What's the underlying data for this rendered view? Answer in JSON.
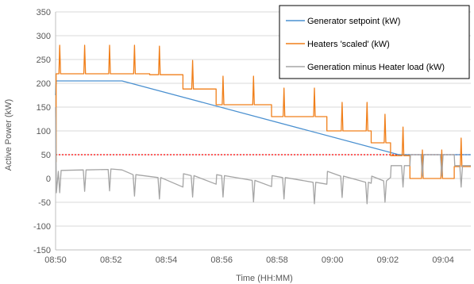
{
  "chart_data": {
    "type": "line",
    "xlabel": "Time (HH:MM)",
    "ylabel": "Active Power (kW)",
    "xlim": [
      0,
      15
    ],
    "ylim": [
      -150,
      350
    ],
    "x_ticks": [
      {
        "t": 0,
        "label": "08:50"
      },
      {
        "t": 2,
        "label": "08:52"
      },
      {
        "t": 4,
        "label": "08:54"
      },
      {
        "t": 6,
        "label": "08:56"
      },
      {
        "t": 8,
        "label": "08:58"
      },
      {
        "t": 10,
        "label": "09:00"
      },
      {
        "t": 12,
        "label": "09:02"
      },
      {
        "t": 14,
        "label": "09:04"
      }
    ],
    "y_ticks": [
      -150,
      -100,
      -50,
      0,
      50,
      100,
      150,
      200,
      250,
      300,
      350
    ],
    "grid": "horizontal",
    "legend": "top-right",
    "reference_line": {
      "y": 50,
      "color": "#ff0000",
      "style": "dotted"
    },
    "series": [
      {
        "name": "Generator setpoint (kW)",
        "color": "#4a90d0",
        "points": [
          [
            0,
            175
          ],
          [
            0.02,
            205
          ],
          [
            2.4,
            205
          ],
          [
            12.4,
            50
          ],
          [
            15,
            50
          ]
        ]
      },
      {
        "name": "Heaters 'scaled' (kW)",
        "color": "#f07f1a",
        "spike_height": 60,
        "levels": [
          {
            "t0": 0,
            "t1": 0.02,
            "y": 35
          },
          {
            "t0": 0.02,
            "t1": 3.4,
            "y": 220
          },
          {
            "t0": 3.4,
            "t1": 4.6,
            "y": 218
          },
          {
            "t0": 4.6,
            "t1": 5.8,
            "y": 188
          },
          {
            "t0": 5.8,
            "t1": 7.8,
            "y": 155
          },
          {
            "t0": 7.8,
            "t1": 9.8,
            "y": 130
          },
          {
            "t0": 9.8,
            "t1": 11.4,
            "y": 100
          },
          {
            "t0": 11.4,
            "t1": 12.1,
            "y": 75
          },
          {
            "t0": 12.1,
            "t1": 12.8,
            "y": 48
          },
          {
            "t0": 12.8,
            "t1": 14.4,
            "y": 0
          },
          {
            "t0": 14.4,
            "t1": 15,
            "y": 25
          }
        ],
        "spikes": [
          0.15,
          1.05,
          1.95,
          2.85,
          3.75,
          4.95,
          6.05,
          7.15,
          8.25,
          9.35,
          10.35,
          11.25,
          11.9,
          12.55,
          13.25,
          13.95,
          14.65
        ]
      },
      {
        "name": "Generation minus Heater load (kW)",
        "color": "#a5a5a5",
        "spike_depth": 45,
        "points": [
          [
            0,
            150
          ],
          [
            0.03,
            -30
          ],
          [
            0.1,
            15
          ],
          [
            0.15,
            -30
          ],
          [
            0.2,
            17
          ],
          [
            1.0,
            18
          ],
          [
            1.05,
            -27
          ],
          [
            1.1,
            18
          ],
          [
            1.9,
            19
          ],
          [
            1.95,
            -26
          ],
          [
            2.0,
            20
          ],
          [
            2.4,
            18
          ],
          [
            2.8,
            8
          ],
          [
            2.85,
            -37
          ],
          [
            2.9,
            8
          ],
          [
            3.7,
            2
          ],
          [
            3.75,
            -43
          ],
          [
            3.8,
            2
          ],
          [
            4.6,
            -18
          ],
          [
            4.62,
            10
          ],
          [
            4.9,
            6
          ],
          [
            4.95,
            -39
          ],
          [
            5.0,
            6
          ],
          [
            5.8,
            -12
          ],
          [
            5.82,
            8
          ],
          [
            6.0,
            6
          ],
          [
            6.05,
            -39
          ],
          [
            6.1,
            6
          ],
          [
            7.1,
            -4
          ],
          [
            7.15,
            -49
          ],
          [
            7.2,
            -4
          ],
          [
            7.8,
            -17
          ],
          [
            7.82,
            6
          ],
          [
            8.2,
            2
          ],
          [
            8.25,
            -43
          ],
          [
            8.3,
            2
          ],
          [
            9.3,
            -8
          ],
          [
            9.35,
            -53
          ],
          [
            9.4,
            -8
          ],
          [
            9.8,
            -12
          ],
          [
            9.82,
            15
          ],
          [
            10.3,
            5
          ],
          [
            10.35,
            -40
          ],
          [
            10.4,
            5
          ],
          [
            11.2,
            -8
          ],
          [
            11.25,
            -53
          ],
          [
            11.3,
            -8
          ],
          [
            11.4,
            -10
          ],
          [
            11.42,
            5
          ],
          [
            11.85,
            -5
          ],
          [
            11.9,
            -50
          ],
          [
            11.95,
            -5
          ],
          [
            12.1,
            2
          ],
          [
            12.12,
            27
          ],
          [
            12.5,
            27
          ],
          [
            12.55,
            -18
          ],
          [
            12.6,
            27
          ],
          [
            12.8,
            27
          ],
          [
            12.82,
            50
          ],
          [
            13.2,
            50
          ],
          [
            13.25,
            5
          ],
          [
            13.3,
            50
          ],
          [
            13.9,
            50
          ],
          [
            13.95,
            5
          ],
          [
            14.0,
            50
          ],
          [
            14.4,
            50
          ],
          [
            14.42,
            27
          ],
          [
            14.6,
            27
          ],
          [
            14.65,
            -18
          ],
          [
            14.7,
            27
          ],
          [
            15,
            27
          ]
        ]
      }
    ]
  }
}
